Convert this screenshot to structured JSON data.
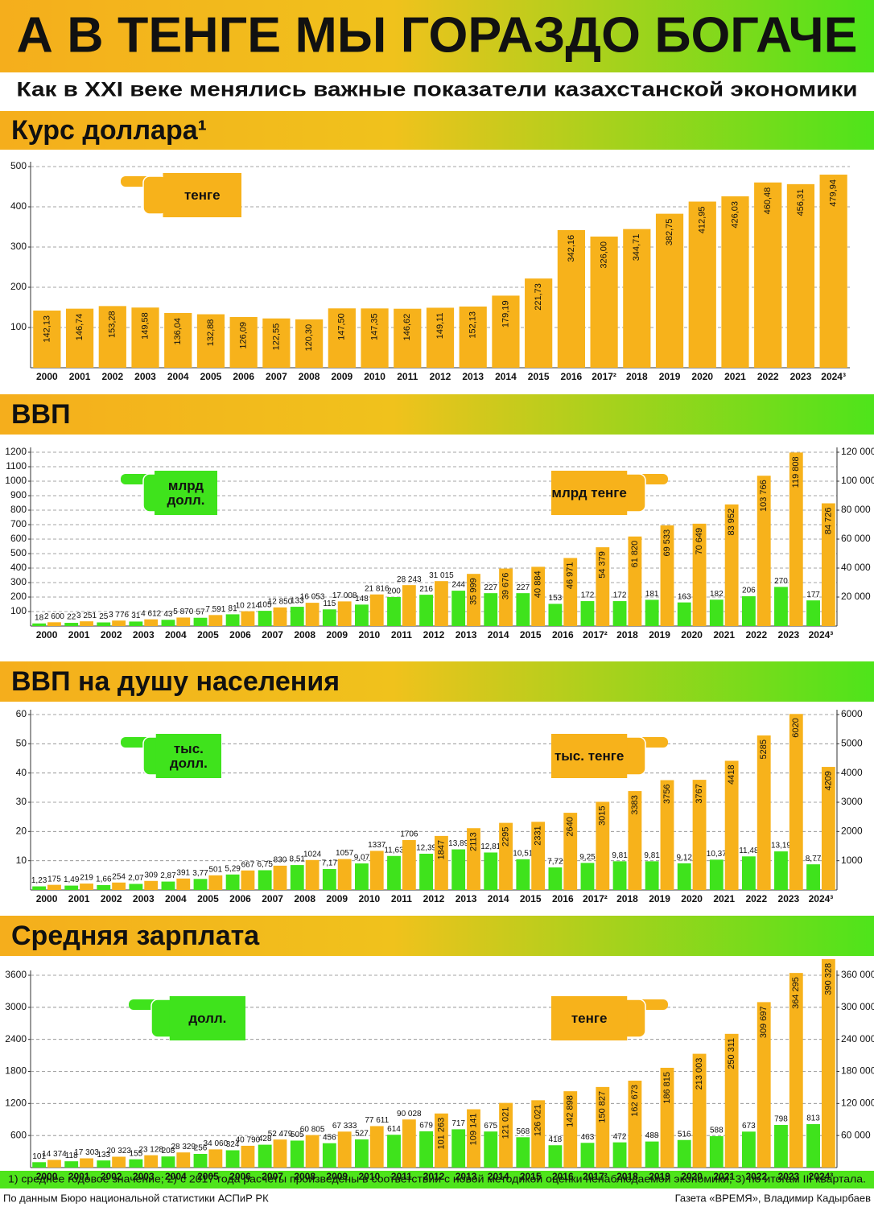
{
  "title": "А В ТЕНГЕ МЫ ГОРАЗДО БОГАЧЕ",
  "subtitle": "Как в XXI веке менялись важные показатели казахстанской экономики",
  "footnote": "1) среднее годовое значение; 2) с 2017 года расчеты произведены в соответствии с новой методикой оценки  ненаблюдаемой экономики; 3) по итогам III квартала.",
  "source": "По данным Бюро национальной статистики АСПиР РК",
  "credit": "Газета «ВРЕМЯ», Владимир Кадырбаев",
  "chart_data": [
    {
      "type": "bar",
      "title": "Курс доллара¹",
      "grid": true,
      "categories": [
        "2000",
        "2001",
        "2002",
        "2003",
        "2004",
        "2005",
        "2006",
        "2007",
        "2008",
        "2009",
        "2010",
        "2011",
        "2012",
        "2013",
        "2014",
        "2015",
        "2016",
        "2017²",
        "2018",
        "2019",
        "2020",
        "2021",
        "2022",
        "2023",
        "2024³"
      ],
      "ylim": [
        0,
        500
      ],
      "yticks": [
        100,
        200,
        300,
        400,
        500
      ],
      "series": [
        {
          "name": "тенге",
          "color": "#f7b21b",
          "values": [
            142.13,
            146.74,
            153.28,
            149.58,
            136.04,
            132.88,
            126.09,
            122.55,
            120.3,
            147.5,
            147.35,
            146.62,
            149.11,
            152.13,
            179.19,
            221.73,
            342.16,
            326.0,
            344.71,
            382.75,
            412.95,
            426.03,
            460.48,
            456.31,
            479.94
          ],
          "value_labels": [
            "142,13",
            "146,74",
            "153,28",
            "149,58",
            "136,04",
            "132,88",
            "126,09",
            "122,55",
            "120,30",
            "147,50",
            "147,35",
            "146,62",
            "149,11",
            "152,13",
            "179,19",
            "221,73",
            "342,16",
            "326,00",
            "344,71",
            "382,75",
            "412,95",
            "426,03",
            "460,48",
            "456,31",
            "479,94"
          ]
        }
      ]
    },
    {
      "type": "bar",
      "title": "ВВП",
      "grid": true,
      "categories": [
        "2000",
        "2001",
        "2002",
        "2003",
        "2004",
        "2005",
        "2006",
        "2007",
        "2008",
        "2009",
        "2010",
        "2011",
        "2012",
        "2013",
        "2014",
        "2015",
        "2016",
        "2017²",
        "2018",
        "2019",
        "2020",
        "2021",
        "2022",
        "2023",
        "2024³"
      ],
      "ylim": [
        0,
        1200
      ],
      "yticks": [
        100,
        200,
        300,
        400,
        500,
        600,
        700,
        800,
        900,
        1000,
        1100,
        1200
      ],
      "y2lim": [
        0,
        120000
      ],
      "y2ticks": [
        {
          "value": 20000,
          "label": "20 000"
        },
        {
          "value": 40000,
          "label": "40 000"
        },
        {
          "value": 60000,
          "label": "60 000"
        },
        {
          "value": 80000,
          "label": "80 000"
        },
        {
          "value": 100000,
          "label": "100 000"
        },
        {
          "value": 120000,
          "label": "120 000"
        }
      ],
      "series": [
        {
          "name": "млрд долл.",
          "color": "#3fe31c",
          "values": [
            18,
            22,
            25,
            31,
            43,
            57,
            81,
            105,
            133,
            115,
            148,
            200,
            216,
            244,
            227,
            227,
            153,
            172,
            172,
            181,
            163,
            182,
            206,
            270,
            177
          ]
        },
        {
          "name": "млрд тенге",
          "color": "#f7b21b",
          "axis": "y2",
          "values": [
            2600,
            3251,
            3776,
            4612,
            5870,
            7591,
            10214,
            12850,
            16053,
            17008,
            21816,
            28243,
            31015,
            35999,
            39676,
            40884,
            46971,
            54379,
            61820,
            69533,
            70649,
            83952,
            103766,
            119808,
            84726
          ],
          "value_labels": [
            "2 600",
            "3 251",
            "3 776",
            "4 612",
            "5 870",
            "7 591",
            "10 214",
            "12 850",
            "16 053",
            "17 008",
            "21 816",
            "28 243",
            "31 015",
            "35 999",
            "39 676",
            "40 884",
            "46 971",
            "54 379",
            "61 820",
            "69 533",
            "70 649",
            "83 952",
            "103 766",
            "119 808",
            "84 726"
          ]
        }
      ]
    },
    {
      "type": "bar",
      "title": "ВВП на душу населения",
      "grid": true,
      "categories": [
        "2000",
        "2001",
        "2002",
        "2003",
        "2004",
        "2005",
        "2006",
        "2007",
        "2008",
        "2009",
        "2010",
        "2011",
        "2012",
        "2013",
        "2014",
        "2015",
        "2016",
        "2017²",
        "2018",
        "2019",
        "2020",
        "2021",
        "2022",
        "2023",
        "2024³"
      ],
      "ylim": [
        0,
        60
      ],
      "yticks": [
        10,
        20,
        30,
        40,
        50,
        60
      ],
      "y2lim": [
        0,
        6000
      ],
      "y2ticks": [
        1000,
        2000,
        3000,
        4000,
        5000,
        6000
      ],
      "series": [
        {
          "name": "тыс. долл.",
          "color": "#3fe31c",
          "values": [
            1.23,
            1.49,
            1.66,
            2.07,
            2.87,
            3.77,
            5.29,
            6.75,
            8.51,
            7.17,
            9.07,
            11.63,
            12.39,
            13.89,
            12.81,
            10.51,
            7.72,
            9.25,
            9.81,
            9.81,
            9.12,
            10.37,
            11.48,
            13.19,
            8.77
          ],
          "value_labels": [
            "1,23",
            "1,49",
            "1,66",
            "2,07",
            "2,87",
            "3,77",
            "5,29",
            "6,75",
            "8,51",
            "7,17",
            "9,07",
            "11,63",
            "12,39",
            "13,89",
            "12,81",
            "10,51",
            "7,72",
            "9,25",
            "9,81",
            "9,81",
            "9,12",
            "10,37",
            "11,48",
            "13,19",
            "8,77"
          ]
        },
        {
          "name": "тыс. тенге",
          "color": "#f7b21b",
          "axis": "y2",
          "values": [
            175,
            219,
            254,
            309,
            391,
            501,
            667,
            830,
            1024,
            1057,
            1337,
            1706,
            1847,
            2113,
            2295,
            2331,
            2640,
            3015,
            3383,
            3756,
            3767,
            4418,
            5285,
            6020,
            4209
          ]
        }
      ]
    },
    {
      "type": "bar",
      "title": "Средняя зарплата",
      "grid": true,
      "categories": [
        "2000",
        "2001",
        "2002",
        "2003",
        "2004",
        "2005",
        "2006",
        "2007",
        "2008",
        "2009",
        "2010",
        "2011",
        "2012",
        "2013",
        "2014",
        "2015",
        "2016",
        "2017²",
        "2018",
        "2019",
        "2020",
        "2021",
        "2022",
        "2023",
        "2024³"
      ],
      "ylim": [
        0,
        3600
      ],
      "yticks": [
        600,
        1200,
        1800,
        2400,
        3000,
        3600
      ],
      "y2lim": [
        0,
        360000
      ],
      "y2ticks": [
        {
          "value": 60000,
          "label": "60 000"
        },
        {
          "value": 120000,
          "label": "120 000"
        },
        {
          "value": 180000,
          "label": "180 000"
        },
        {
          "value": 240000,
          "label": "240 000"
        },
        {
          "value": 300000,
          "label": "300 000"
        },
        {
          "value": 360000,
          "label": "360 000"
        }
      ],
      "series": [
        {
          "name": "долл.",
          "color": "#3fe31c",
          "values": [
            101,
            118,
            133,
            155,
            208,
            256,
            324,
            428,
            505,
            456,
            527,
            614,
            679,
            717,
            675,
            568,
            418,
            463,
            472,
            488,
            516,
            588,
            673,
            798,
            813
          ]
        },
        {
          "name": "тенге",
          "color": "#f7b21b",
          "axis": "y2",
          "values": [
            14374,
            17303,
            20323,
            23128,
            28329,
            34060,
            40790,
            52479,
            60805,
            67333,
            77611,
            90028,
            101263,
            109141,
            121021,
            126021,
            142898,
            150827,
            162673,
            186815,
            213003,
            250311,
            309697,
            364295,
            390328
          ],
          "value_labels": [
            "14 374",
            "17 303",
            "20 323",
            "23 128",
            "28 329",
            "34 060",
            "40 790",
            "52 479",
            "60 805",
            "67 333",
            "77 611",
            "90 028",
            "101 263",
            "109 141",
            "121 021",
            "126 021",
            "142 898",
            "150 827",
            "162 673",
            "186 815",
            "213 003",
            "250 311",
            "309 697",
            "364 295",
            "390 328"
          ]
        }
      ]
    }
  ]
}
